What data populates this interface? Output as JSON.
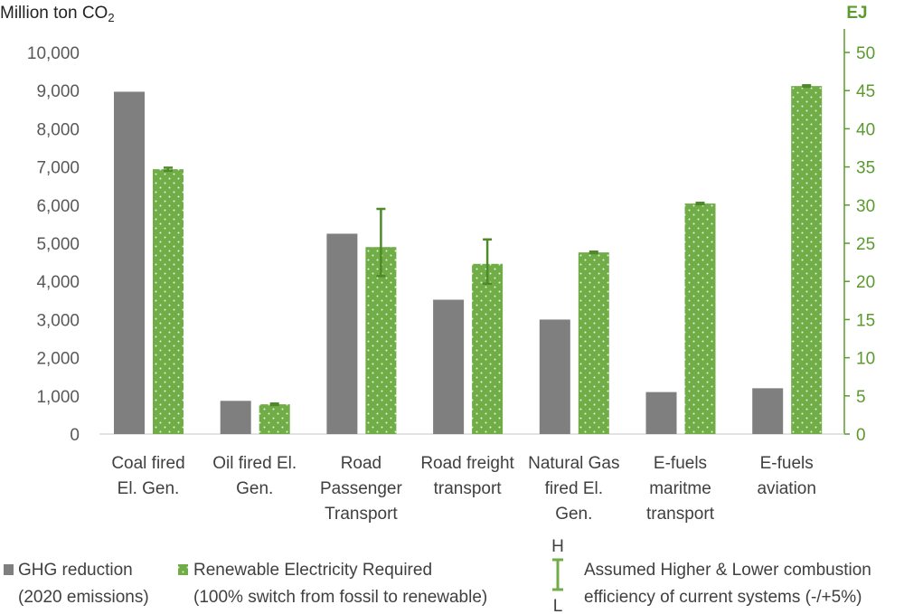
{
  "chart_data": {
    "type": "bar",
    "left_axis_title_main": "Million ton CO",
    "left_axis_title_sub": "2",
    "right_axis_title": "EJ",
    "left_ticks": [
      "0",
      "1,000",
      "2,000",
      "3,000",
      "4,000",
      "5,000",
      "6,000",
      "7,000",
      "8,000",
      "9,000",
      "10,000"
    ],
    "right_ticks": [
      "0",
      "5",
      "10",
      "15",
      "20",
      "25",
      "30",
      "35",
      "40",
      "45",
      "50"
    ],
    "ylim_left": [
      0,
      10000
    ],
    "ylim_right": [
      0,
      50
    ],
    "categories": [
      [
        "Coal fired",
        "El. Gen."
      ],
      [
        "Oil fired El.",
        "Gen."
      ],
      [
        "Road",
        "Passenger",
        "Transport"
      ],
      [
        "Road freight",
        "transport"
      ],
      [
        "Natural Gas",
        "fired El.",
        "Gen."
      ],
      [
        "E-fuels",
        "maritme",
        "transport"
      ],
      [
        "E-fuels",
        "aviation"
      ]
    ],
    "series": [
      {
        "name": "GHG reduction (2020 emissions)",
        "axis": "left",
        "color": "#7f7f7f",
        "values": [
          8970,
          870,
          5250,
          3520,
          3000,
          1100,
          1200
        ]
      },
      {
        "name": "Renewable Electricity Required (100% switch from fossil to renewable)",
        "axis": "right",
        "color": "#70ad47",
        "values": [
          34.7,
          3.9,
          24.5,
          22.3,
          23.8,
          30.2,
          45.6
        ],
        "error_high": [
          34.9,
          4.0,
          29.5,
          25.5,
          23.9,
          30.3,
          45.7
        ],
        "error_low": [
          34.5,
          3.8,
          20.7,
          19.7,
          23.7,
          30.1,
          45.5
        ]
      }
    ],
    "legend": {
      "gray_line1": "GHG reduction",
      "gray_line2": "(2020 emissions)",
      "green_line1": "Renewable Electricity Required",
      "green_line2": "(100% switch from fossil to renewable)",
      "err_high_label": "H",
      "err_low_label": "L",
      "err_line1": "Assumed Higher & Lower combustion",
      "err_line2": "efficiency of current systems (-/+5%)"
    }
  }
}
